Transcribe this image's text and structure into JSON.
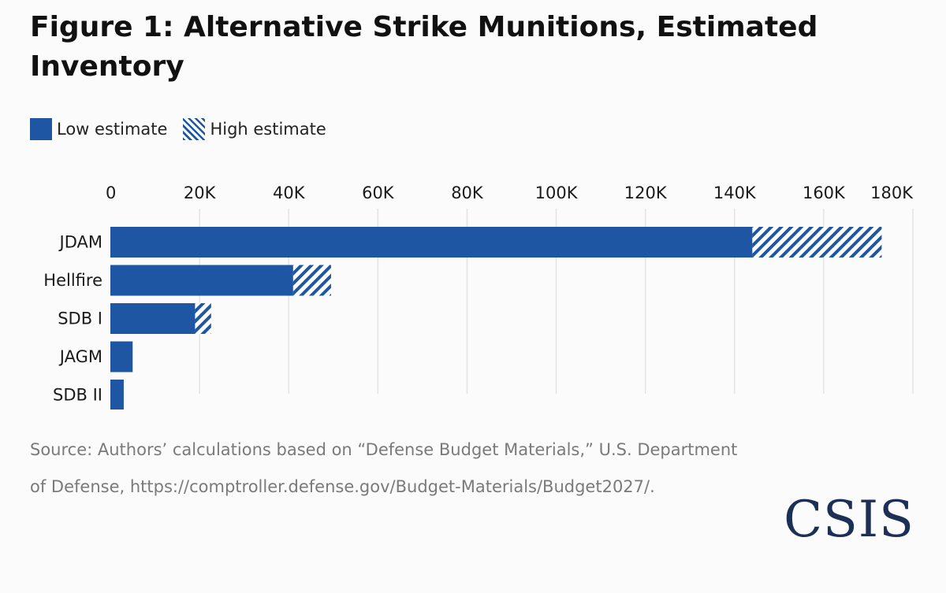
{
  "title": "Figure 1: Alternative Strike Munitions, Estimated Inventory",
  "legend": {
    "low_label": "Low estimate",
    "high_label": "High estimate"
  },
  "source_text": "Source: Authors’ calculations based on “Defense Budget Materials,” U.S. Department of Defense, https://comptroller.defense.gov/Budget-Materials/Budget2027/.",
  "logo_text": "CSIS",
  "colors": {
    "bar": "#1f56a4",
    "hatch_bg": "#ffffff",
    "grid": "#e3e3e3",
    "source": "#7a7a7a",
    "logo": "#1c2f57"
  },
  "chart_data": {
    "type": "bar",
    "orientation": "horizontal",
    "stacked": true,
    "categories": [
      "JDAM",
      "Hellfire",
      "SDB I",
      "JAGM",
      "SDB II"
    ],
    "series": [
      {
        "name": "Low estimate",
        "values": [
          144000,
          41000,
          19000,
          5000,
          3000
        ]
      },
      {
        "name": "High estimate",
        "values": [
          29000,
          8500,
          3600,
          0,
          0
        ]
      }
    ],
    "xlim": [
      0,
      180000
    ],
    "xticks": [
      0,
      20000,
      40000,
      60000,
      80000,
      100000,
      120000,
      140000,
      160000,
      180000
    ],
    "xtick_labels": [
      "0",
      "20K",
      "40K",
      "60K",
      "80K",
      "100K",
      "120K",
      "140K",
      "160K",
      "180K"
    ],
    "axis_position": "top",
    "grid": true,
    "legend_position": "top-left"
  }
}
